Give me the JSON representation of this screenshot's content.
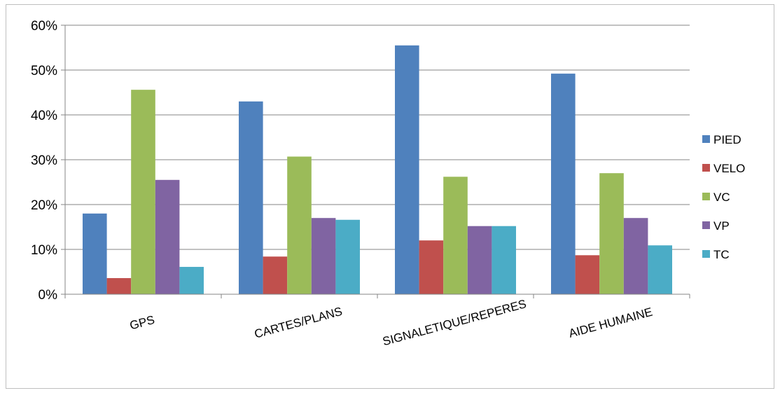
{
  "chart_data": {
    "type": "bar",
    "categories": [
      "GPS",
      "CARTES/PLANS",
      "SIGNALETIQUE/REPERES",
      "AIDE HUMAINE"
    ],
    "series": [
      {
        "name": "PIED",
        "color": "#4f81bd",
        "values": [
          18,
          43,
          55.5,
          49.2
        ]
      },
      {
        "name": "VELO",
        "color": "#c0504d",
        "values": [
          3.6,
          8.4,
          12,
          8.7
        ]
      },
      {
        "name": "VC",
        "color": "#9bbb59",
        "values": [
          45.6,
          30.7,
          26.2,
          27
        ]
      },
      {
        "name": "VP",
        "color": "#8064a2",
        "values": [
          25.5,
          17,
          15.2,
          17
        ]
      },
      {
        "name": "TC",
        "color": "#4bacc6",
        "values": [
          6.1,
          16.6,
          15.2,
          10.9
        ]
      }
    ],
    "ylim": [
      0,
      60
    ],
    "yticks": [
      "0%",
      "10%",
      "20%",
      "30%",
      "40%",
      "50%",
      "60%"
    ],
    "grid": true,
    "legend_position": "right"
  }
}
